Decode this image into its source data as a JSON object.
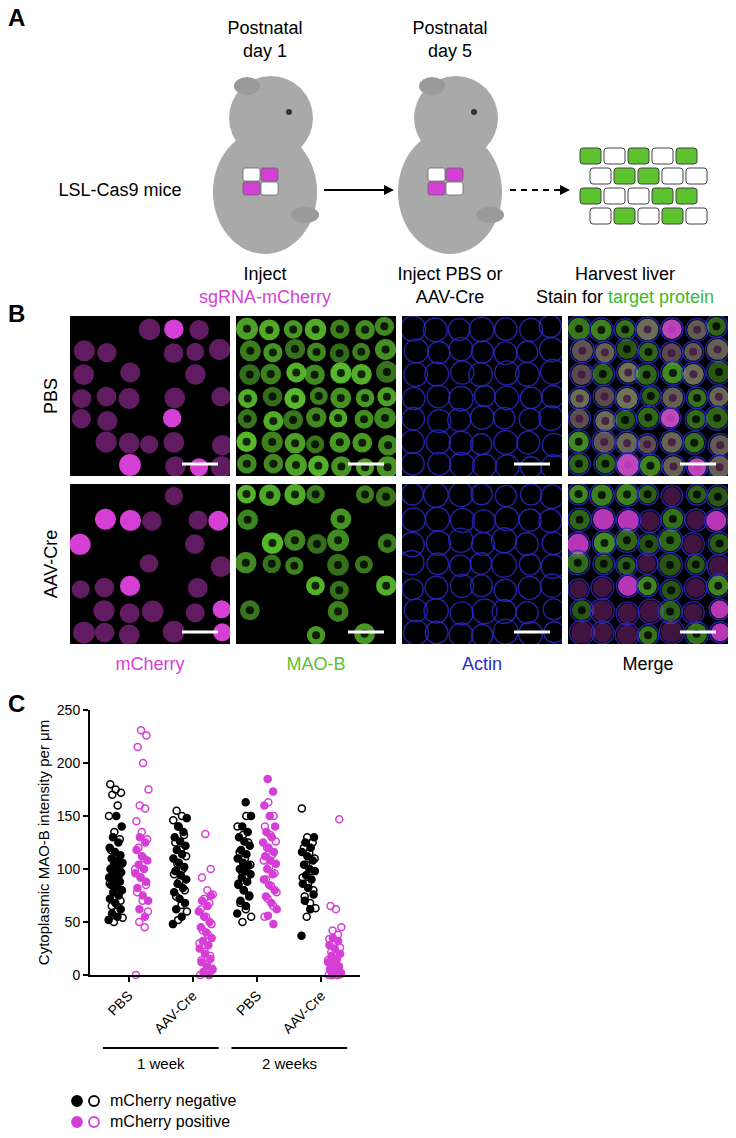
{
  "panel_labels": [
    "A",
    "B",
    "C"
  ],
  "panel_a": {
    "subject": "LSL-Cas9 mice",
    "steps": [
      {
        "time": [
          "Postnatal",
          "day 1"
        ],
        "action": [
          [
            {
              "text": "Inject"
            }
          ],
          [
            {
              "text": "sgRNA-mCherry",
              "color": "#d63fd6"
            }
          ]
        ]
      },
      {
        "time": [
          "Postnatal",
          "day 5"
        ],
        "action": [
          [
            {
              "text": "Inject PBS or"
            }
          ],
          [
            {
              "text": "AAV-Cre"
            }
          ]
        ]
      },
      {
        "time": [],
        "action": [
          [
            {
              "text": "Harvest liver"
            }
          ],
          [
            {
              "text": "Stain for "
            },
            {
              "text": "target protein",
              "color": "#3cb82e"
            }
          ]
        ]
      }
    ]
  },
  "panel_b": {
    "rows": [
      "PBS",
      "AAV-Cre"
    ],
    "columns": [
      {
        "label": "mCherry",
        "color": "#d63fd6"
      },
      {
        "label": "MAO-B",
        "color": "#5cc22e"
      },
      {
        "label": "Actin",
        "color": "#2b2bd0"
      },
      {
        "label": "Merge"
      }
    ]
  },
  "chart_data": {
    "type": "scatter",
    "y_label": "Cytoplasmic MAO-B intensity per μm",
    "categories": [
      "PBS",
      "AAV-Cre",
      "PBS",
      "AAV-Cre"
    ],
    "group_labels": [
      "1 week",
      "2 weeks"
    ],
    "ylim": [
      0,
      250
    ],
    "yticks": [
      0,
      50,
      100,
      150,
      200,
      250
    ],
    "grid": false,
    "series": [
      {
        "name": "mCherry negative",
        "color": "#000000",
        "marker": "circle",
        "values": [
          [
            52,
            55,
            58,
            62,
            68,
            72,
            75,
            78,
            80,
            83,
            85,
            88,
            90,
            92,
            94,
            95,
            97,
            99,
            100,
            102,
            104,
            106,
            108,
            110,
            113,
            116,
            120,
            125,
            130,
            140,
            150
          ],
          [
            48,
            55,
            62,
            68,
            72,
            78,
            82,
            86,
            90,
            94,
            98,
            102,
            106,
            110,
            114,
            118,
            122,
            126,
            130,
            135,
            140,
            148
          ],
          [
            58,
            65,
            70,
            75,
            80,
            85,
            88,
            92,
            95,
            98,
            100,
            103,
            106,
            110,
            114,
            118,
            122,
            126,
            130,
            135,
            140,
            150,
            163
          ],
          [
            37,
            62,
            70,
            76,
            82,
            86,
            90,
            94,
            98,
            100,
            104,
            108,
            112,
            116,
            120,
            125,
            130
          ]
        ]
      },
      {
        "name": "mCherry negative",
        "color": "#000000",
        "marker": "circle-open",
        "values": [
          [
            50,
            54,
            60,
            65,
            70,
            78,
            86,
            92,
            98,
            105,
            112,
            118,
            128,
            135,
            150,
            160,
            170,
            172,
            175,
            180
          ],
          [
            52,
            60,
            66,
            74,
            80,
            88,
            95,
            100,
            105,
            112,
            118,
            125,
            132,
            140,
            146,
            150,
            155
          ],
          [
            50,
            55,
            62,
            68,
            74,
            80,
            86,
            92,
            98,
            104,
            110,
            116,
            125,
            132,
            140,
            150
          ],
          [
            55,
            63,
            68,
            74,
            80,
            86,
            92,
            98,
            104,
            110,
            115,
            120,
            125,
            130,
            157
          ]
        ]
      },
      {
        "name": "mCherry positive",
        "color": "#d63fd6",
        "marker": "circle",
        "values": [
          [
            55,
            62,
            70,
            75,
            82,
            88,
            92,
            96,
            100,
            104,
            108,
            112,
            118,
            125,
            130
          ],
          [
            0,
            2,
            5,
            8,
            12,
            15,
            20,
            25,
            28,
            32,
            35,
            40,
            45,
            50,
            55,
            60,
            65,
            70,
            75
          ],
          [
            48,
            56,
            62,
            68,
            74,
            80,
            85,
            90,
            95,
            100,
            105,
            108,
            112,
            116,
            120,
            125,
            130,
            135,
            140,
            150,
            160,
            173,
            185
          ],
          [
            0,
            0,
            2,
            4,
            6,
            8,
            10,
            12,
            15,
            18,
            20,
            25,
            28,
            32,
            35
          ]
        ]
      },
      {
        "name": "mCherry positive",
        "color": "#d63fd6",
        "marker": "circle-open",
        "values": [
          [
            0,
            45,
            50,
            60,
            70,
            78,
            85,
            92,
            100,
            110,
            120,
            128,
            135,
            145,
            157,
            160,
            175,
            200,
            215,
            226,
            231
          ],
          [
            0,
            0,
            3,
            6,
            10,
            14,
            18,
            22,
            30,
            38,
            42,
            48,
            55,
            62,
            68,
            72,
            76,
            80,
            92,
            100,
            133
          ],
          [
            55,
            65,
            72,
            78,
            84,
            90,
            96,
            102,
            108,
            114,
            120,
            126,
            132,
            140,
            150,
            163
          ],
          [
            0,
            0,
            0,
            1,
            3,
            5,
            8,
            10,
            14,
            18,
            22,
            26,
            30,
            34,
            38,
            42,
            45,
            62,
            65,
            147
          ]
        ]
      }
    ]
  }
}
